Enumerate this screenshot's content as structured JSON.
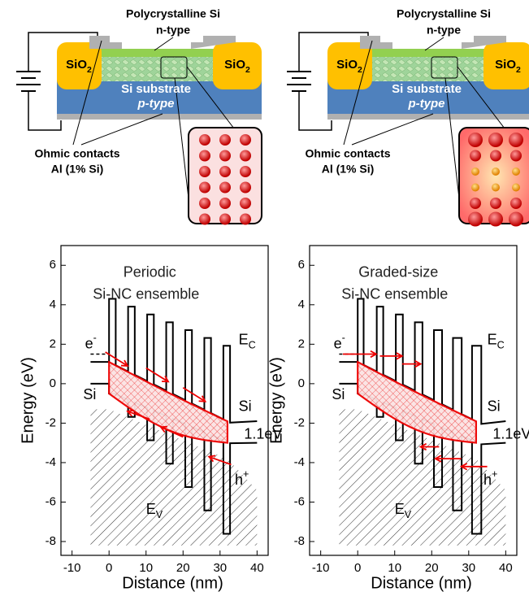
{
  "schematics": [
    {
      "title": "Polycrystalline Si",
      "doping_top": "n-type",
      "oxide": {
        "text": "SiO",
        "sub": "2"
      },
      "substrate": "Si substrate",
      "doping_bottom": "p-type",
      "contacts": "Ohmic contacts",
      "contact_material": "Al (1% Si)"
    },
    {
      "title": "Polycrystalline Si",
      "doping_top": "n-type",
      "oxide": {
        "text": "SiO",
        "sub": "2"
      },
      "substrate": "Si substrate",
      "doping_bottom": "p-type",
      "contacts": "Ohmic contacts",
      "contact_material": "Al (1% Si)"
    }
  ],
  "chart_data": [
    {
      "type": "band-diagram",
      "title": [
        "Periodic",
        "Si-NC ensemble"
      ],
      "xlabel": "Distance (nm)",
      "ylabel": "Energy (eV)",
      "xlim": [
        -13,
        43
      ],
      "ylim": [
        -8.7,
        7
      ],
      "xticks": [
        -10,
        0,
        10,
        20,
        30,
        40
      ],
      "yticks": [
        6,
        4,
        2,
        0,
        -2,
        -4,
        -6,
        -8
      ],
      "labels": {
        "conduction": {
          "text": "E",
          "sub": "C"
        },
        "valence": {
          "text": "E",
          "sub": "V"
        },
        "electron": {
          "text": "e",
          "sup": "-"
        },
        "hole": {
          "text": "h",
          "sup": "+"
        },
        "left_contact": "Si",
        "right_contact": "Si",
        "gap": "1.1eV"
      }
    },
    {
      "type": "band-diagram",
      "title": [
        "Graded-size",
        "Si-NC ensemble"
      ],
      "xlabel": "Distance (nm)",
      "ylabel": "Energy (eV)",
      "xlim": [
        -13,
        43
      ],
      "ylim": [
        -8.7,
        7
      ],
      "xticks": [
        -10,
        0,
        10,
        20,
        30,
        40
      ],
      "yticks": [
        6,
        4,
        2,
        0,
        -2,
        -4,
        -6,
        -8
      ],
      "labels": {
        "conduction": {
          "text": "E",
          "sub": "C"
        },
        "valence": {
          "text": "E",
          "sub": "V"
        },
        "electron": {
          "text": "e",
          "sup": "-"
        },
        "hole": {
          "text": "h",
          "sup": "+"
        },
        "left_contact": "Si",
        "right_contact": "Si",
        "gap": "1.1eV"
      }
    }
  ]
}
